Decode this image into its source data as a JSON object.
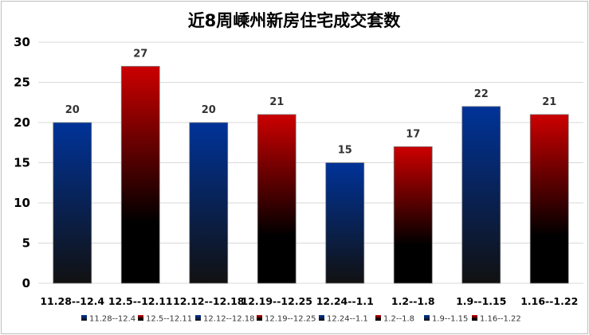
{
  "chart_data": {
    "type": "bar",
    "title": "近8周嵊州新房住宅成交套数",
    "xlabel": "",
    "ylabel": "",
    "categories": [
      "11.28--12.4",
      "12.5--12.11",
      "12.12--12.18",
      "12.19--12.25",
      "12.24--1.1",
      "1.2--1.8",
      "1.9--1.15",
      "1.16--1.22"
    ],
    "legend_labels": [
      "11.28--12.4",
      "12.5--12.11",
      "12.12--12.18",
      "12.19--12.25",
      "12.24--1.1",
      "1.2--1.8",
      "1.9--1.15",
      "1.16--1.22"
    ],
    "values": [
      20,
      27,
      20,
      21,
      15,
      17,
      22,
      21
    ],
    "value_labels": [
      "20",
      "27",
      "20",
      "21",
      "15",
      "17",
      "22",
      "21"
    ],
    "ylim": [
      0,
      30
    ],
    "yticks": [
      "0",
      "5",
      "10",
      "15",
      "20",
      "25",
      "30"
    ],
    "grid": true,
    "legend_position": "bottom",
    "colors": {
      "blue_top": "#003399",
      "blue_bottom": "#111111",
      "red_top": "#cc0000",
      "red_bottom": "#000000",
      "grid": "#d9d9d9"
    },
    "bar_colors": [
      "blue",
      "red",
      "blue",
      "red",
      "blue",
      "red",
      "blue",
      "red"
    ]
  }
}
